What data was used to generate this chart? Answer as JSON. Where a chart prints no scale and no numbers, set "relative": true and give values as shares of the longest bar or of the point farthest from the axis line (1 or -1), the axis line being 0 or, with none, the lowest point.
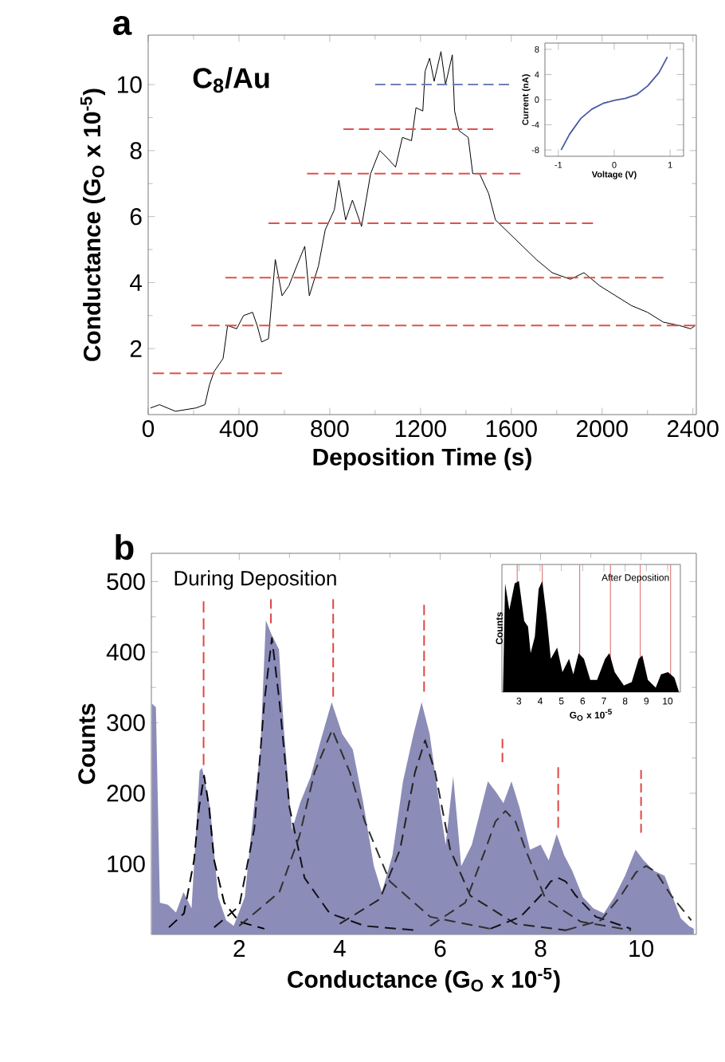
{
  "chart_data": [
    {
      "type": "line",
      "title": "a",
      "xlabel": "Deposition Time (s)",
      "ylabel": "Conductance (G$_{O}$ x 10$^{-5}$)",
      "annotations": [
        "C$_{8}$/Au"
      ],
      "xlim": [
        0,
        2415
      ],
      "ylim": [
        0,
        11.5
      ],
      "xticks": [
        0,
        400,
        800,
        1200,
        1600,
        2000,
        2400
      ],
      "yticks": [
        2,
        4,
        6,
        8,
        10
      ],
      "series": [
        {
          "color": "#000000",
          "x": [
            10,
            50,
            120,
            210,
            250,
            270,
            290,
            330,
            350,
            390,
            420,
            460,
            480,
            500,
            530,
            550,
            560,
            590,
            620,
            660,
            690,
            710,
            750,
            780,
            820,
            840,
            870,
            900,
            940,
            960,
            980,
            1020,
            1050,
            1090,
            1120,
            1160,
            1180,
            1210,
            1220,
            1240,
            1260,
            1290,
            1310,
            1340,
            1350,
            1370,
            1410,
            1430,
            1460,
            1500,
            1530,
            1590,
            1650,
            1710,
            1780,
            1860,
            1920,
            1990,
            2060,
            2130,
            2200,
            2270,
            2340,
            2390,
            2410
          ],
          "values": [
            0.2,
            0.3,
            0.1,
            0.2,
            0.3,
            0.9,
            1.3,
            1.7,
            2.7,
            2.6,
            3.0,
            3.1,
            2.7,
            2.2,
            2.3,
            3.9,
            4.7,
            3.6,
            3.9,
            4.6,
            5.1,
            3.6,
            4.5,
            5.6,
            6.2,
            7.1,
            5.9,
            6.5,
            5.7,
            6.5,
            7.3,
            8.0,
            7.8,
            7.5,
            8.4,
            8.3,
            9.3,
            9.2,
            10.4,
            10.8,
            10.1,
            11.0,
            10.0,
            10.9,
            9.2,
            8.6,
            8.4,
            7.3,
            7.3,
            6.7,
            5.9,
            5.5,
            5.1,
            4.7,
            4.3,
            4.1,
            4.3,
            3.9,
            3.6,
            3.3,
            3.1,
            2.8,
            2.7,
            2.6,
            2.7
          ]
        },
        {
          "color": "#e05050",
          "line_style": "dashed",
          "x": [
            20,
            590
          ],
          "values": [
            1.25,
            1.25
          ]
        },
        {
          "color": "#e05050",
          "line_style": "dashed",
          "x": [
            190,
            2410
          ],
          "values": [
            2.7,
            2.7
          ]
        },
        {
          "color": "#e05050",
          "line_style": "dashed",
          "x": [
            340,
            2270
          ],
          "values": [
            4.15,
            4.15
          ]
        },
        {
          "color": "#e05050",
          "line_style": "dashed",
          "x": [
            530,
            1960
          ],
          "values": [
            5.8,
            5.8
          ]
        },
        {
          "color": "#e05050",
          "line_style": "dashed",
          "x": [
            700,
            1640
          ],
          "values": [
            7.3,
            7.3
          ]
        },
        {
          "color": "#e05050",
          "line_style": "dashed",
          "x": [
            860,
            1520
          ],
          "values": [
            8.65,
            8.65
          ]
        },
        {
          "color": "#7080b8",
          "line_style": "dashed",
          "x": [
            1000,
            1590
          ],
          "values": [
            10.0,
            10.0
          ]
        }
      ]
    },
    {
      "type": "line",
      "xlabel": "Voltage (V)",
      "ylabel": "Current (nA)",
      "xlim": [
        -1.24,
        1.24
      ],
      "ylim": [
        -9,
        9
      ],
      "xticks": [
        -1,
        0,
        1
      ],
      "yticks": [
        -8,
        -4,
        0,
        4,
        8
      ],
      "series": [
        {
          "color": "#4a5aa0",
          "x": [
            -0.95,
            -0.8,
            -0.6,
            -0.4,
            -0.2,
            0,
            0.2,
            0.4,
            0.6,
            0.8,
            0.95
          ],
          "values": [
            -8,
            -5.5,
            -3,
            -1.5,
            -0.6,
            -0.1,
            0.2,
            0.8,
            2.2,
            4.3,
            6.8
          ]
        }
      ]
    },
    {
      "type": "area",
      "title": "b",
      "xlabel": "Conductance (G$_{O}$ x 10$^{-5}$)",
      "ylabel": "Counts",
      "annotations": [
        "During Deposition"
      ],
      "xlim": [
        0.25,
        11.1
      ],
      "ylim": [
        0,
        540
      ],
      "xticks": [
        2,
        4,
        6,
        8,
        10
      ],
      "yticks": [
        100,
        200,
        300,
        400,
        500
      ],
      "series": [
        {
          "color": "#8c8cb8",
          "x": [
            0.26,
            0.34,
            0.42,
            0.58,
            0.74,
            0.89,
            1.05,
            1.21,
            1.26,
            1.42,
            1.58,
            1.74,
            1.89,
            2.11,
            2.26,
            2.42,
            2.53,
            2.63,
            2.79,
            2.89,
            3.05,
            3.21,
            3.42,
            3.63,
            3.84,
            4.05,
            4.26,
            4.47,
            4.68,
            4.84,
            5.05,
            5.26,
            5.47,
            5.63,
            5.79,
            5.95,
            6.11,
            6.26,
            6.42,
            6.63,
            6.84,
            6.95,
            7.11,
            7.26,
            7.42,
            7.58,
            7.79,
            8.0,
            8.16,
            8.32,
            8.47,
            8.63,
            8.84,
            9.05,
            9.26,
            9.47,
            9.68,
            9.89,
            10.05,
            10.26,
            10.47,
            10.63,
            10.79,
            10.95,
            11.05
          ],
          "values": [
            327,
            322,
            45,
            42,
            31,
            60,
            37,
            232,
            236,
            180,
            53,
            20,
            12,
            53,
            158,
            262,
            445,
            427,
            404,
            290,
            148,
            186,
            223,
            277,
            329,
            284,
            262,
            186,
            97,
            60,
            112,
            217,
            284,
            329,
            284,
            202,
            127,
            224,
            97,
            127,
            186,
            217,
            202,
            186,
            217,
            180,
            120,
            127,
            105,
            142,
            112,
            90,
            53,
            37,
            30,
            53,
            83,
            120,
            105,
            90,
            83,
            53,
            23,
            12,
            8
          ]
        },
        {
          "type": "line",
          "color": "#000000",
          "line_style": "dashed",
          "x": [
            0.6,
            0.9,
            1.1,
            1.2,
            1.3,
            1.4,
            1.5,
            1.7,
            2.0,
            2.5
          ],
          "values": [
            10,
            30,
            105,
            180,
            225,
            180,
            105,
            45,
            18,
            8
          ]
        },
        {
          "type": "line",
          "color": "#101018",
          "line_style": "dashed",
          "x": [
            1.5,
            2.0,
            2.3,
            2.5,
            2.65,
            2.8,
            3.0,
            3.3,
            3.8,
            4.5,
            5.5
          ],
          "values": [
            10,
            40,
            150,
            330,
            420,
            330,
            180,
            80,
            30,
            12,
            6
          ]
        },
        {
          "type": "line",
          "color": "#303030",
          "line_style": "dashed",
          "x": [
            2.0,
            2.8,
            3.2,
            3.5,
            3.85,
            4.2,
            4.5,
            5.0,
            5.8,
            7.0
          ],
          "values": [
            12,
            60,
            140,
            230,
            290,
            230,
            160,
            75,
            25,
            8
          ]
        },
        {
          "type": "line",
          "color": "#222222",
          "line_style": "dashed",
          "x": [
            4.0,
            4.8,
            5.2,
            5.5,
            5.7,
            5.9,
            6.2,
            6.6,
            7.5,
            8.5
          ],
          "values": [
            15,
            50,
            120,
            230,
            275,
            230,
            120,
            55,
            15,
            6
          ]
        },
        {
          "type": "line",
          "color": "#303030",
          "line_style": "dashed",
          "x": [
            5.8,
            6.5,
            6.9,
            7.1,
            7.3,
            7.5,
            7.7,
            8.1,
            8.8,
            9.8
          ],
          "values": [
            12,
            45,
            120,
            160,
            175,
            160,
            120,
            50,
            18,
            6
          ]
        },
        {
          "type": "line",
          "color": "#101018",
          "line_style": "dashed",
          "x": [
            7.0,
            7.6,
            8.0,
            8.2,
            8.35,
            8.5,
            8.7,
            9.1,
            9.8
          ],
          "values": [
            8,
            25,
            55,
            75,
            80,
            75,
            55,
            25,
            8
          ]
        },
        {
          "type": "line",
          "color": "#303030",
          "line_style": "dashed",
          "x": [
            8.5,
            9.2,
            9.6,
            9.9,
            10.1,
            10.3,
            10.6,
            11.0
          ],
          "values": [
            6,
            20,
            55,
            88,
            97,
            88,
            55,
            20
          ]
        },
        {
          "type": "line",
          "color": "#e04545",
          "line_style": "dashed",
          "x": [
            1.29,
            1.29
          ],
          "values": [
            240,
            472
          ]
        },
        {
          "type": "line",
          "color": "#e04545",
          "line_style": "dashed",
          "x": [
            2.63,
            2.63
          ],
          "values": [
            441,
            475
          ]
        },
        {
          "type": "line",
          "color": "#e04545",
          "line_style": "dashed",
          "x": [
            3.87,
            3.87
          ],
          "values": [
            337,
            475
          ]
        },
        {
          "type": "line",
          "color": "#e04545",
          "line_style": "dashed",
          "x": [
            5.68,
            5.68
          ],
          "values": [
            344,
            467
          ]
        },
        {
          "type": "line",
          "color": "#e04545",
          "line_style": "dashed",
          "x": [
            7.24,
            7.24
          ],
          "values": [
            244,
            277
          ]
        },
        {
          "type": "line",
          "color": "#e04545",
          "line_style": "dashed",
          "x": [
            8.35,
            8.35
          ],
          "values": [
            151,
            237
          ]
        },
        {
          "type": "line",
          "color": "#e04545",
          "line_style": "dashed",
          "x": [
            10.0,
            10.0
          ],
          "values": [
            144,
            233
          ]
        }
      ]
    },
    {
      "type": "area",
      "relative": true,
      "xlabel": "G$_{O}$ x 10$^{-5}$",
      "ylabel": "Counts",
      "annotations": [
        "After Deposition"
      ],
      "xlim": [
        2.2,
        10.6
      ],
      "xticks": [
        3,
        4,
        5,
        6,
        7,
        8,
        9,
        10
      ],
      "tick_labels": "x",
      "ref_lines": [
        {
          "axis": "x",
          "value": 2.92,
          "color": "#e08080"
        },
        {
          "axis": "x",
          "value": 4.1,
          "color": "#e08080"
        },
        {
          "axis": "x",
          "value": 5.86,
          "color": "#e08080"
        },
        {
          "axis": "x",
          "value": 7.31,
          "color": "#e08080"
        },
        {
          "axis": "x",
          "value": 8.71,
          "color": "#e08080"
        },
        {
          "axis": "x",
          "value": 10.14,
          "color": "#e08080"
        }
      ],
      "series": [
        {
          "color": "#000000",
          "x": [
            2.25,
            2.35,
            2.55,
            2.8,
            3.0,
            3.25,
            3.43,
            3.55,
            3.75,
            3.93,
            4.1,
            4.3,
            4.5,
            4.8,
            5.05,
            5.36,
            5.56,
            5.81,
            6.06,
            6.36,
            6.68,
            7.06,
            7.26,
            7.51,
            7.94,
            8.31,
            8.64,
            8.81,
            9.07,
            9.44,
            9.69,
            10.02,
            10.32,
            10.52
          ],
          "values": [
            0,
            0.98,
            0.74,
            0.98,
            1.0,
            0.64,
            0.59,
            0.35,
            0.5,
            0.93,
            1.0,
            0.69,
            0.3,
            0.4,
            0.18,
            0.3,
            0.16,
            0.35,
            0.3,
            0.11,
            0.11,
            0.3,
            0.35,
            0.18,
            0.06,
            0.09,
            0.3,
            0.33,
            0.11,
            0.04,
            0.16,
            0.18,
            0.13,
            0.01
          ]
        }
      ]
    }
  ]
}
